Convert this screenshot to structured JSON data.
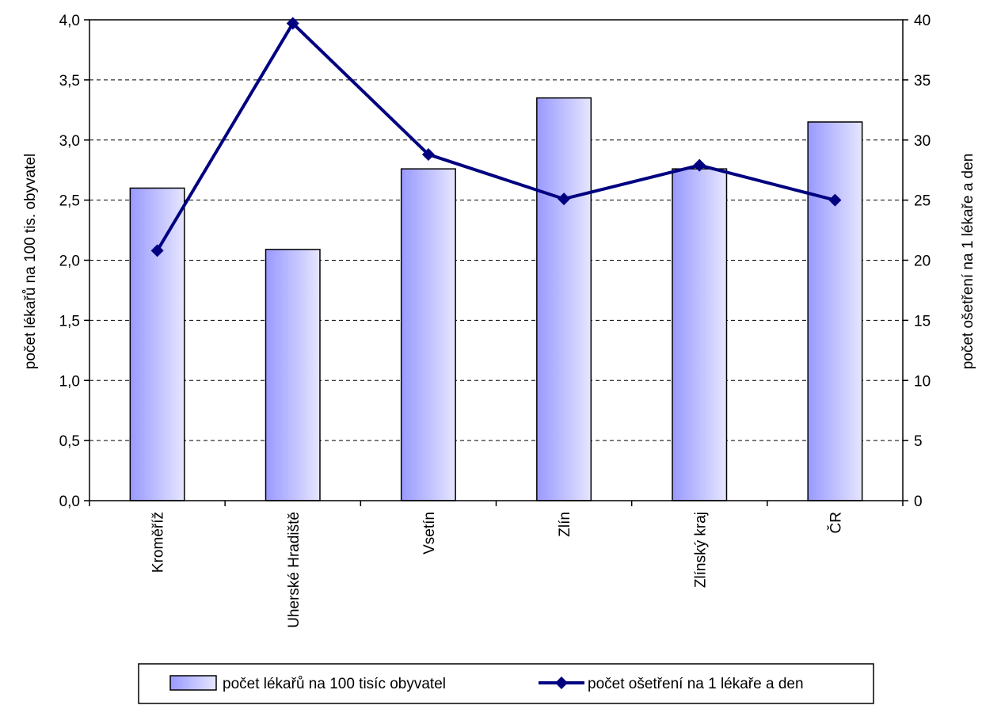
{
  "chart_data": {
    "type": "bar",
    "categories": [
      "Kroměříž",
      "Uherské Hradiště",
      "Vsetín",
      "Zlín",
      "Zlínský kraj",
      "ČR"
    ],
    "series": [
      {
        "name": "počet lékařů na 100 tisíc obyvatel",
        "type": "bar",
        "axis": "left",
        "values": [
          2.6,
          2.09,
          2.76,
          3.35,
          2.76,
          3.15
        ]
      },
      {
        "name": "počet ošetření na 1 lékaře a den",
        "type": "line",
        "axis": "right",
        "marker": "diamond",
        "values": [
          20.8,
          39.7,
          28.8,
          25.1,
          27.9,
          25.0
        ]
      }
    ],
    "ylabel_left": "počet lékařů na 100 tis. obyvatel",
    "ylabel_right": "počet ošetření na 1 lékaře a den",
    "ylim_left": [
      0,
      4
    ],
    "ylim_right": [
      0,
      40
    ],
    "yticks_left": [
      "0,0",
      "0,5",
      "1,0",
      "1,5",
      "2,0",
      "2,5",
      "3,0",
      "3,5",
      "4,0"
    ],
    "yticks_right": [
      "0",
      "5",
      "10",
      "15",
      "20",
      "25",
      "30",
      "35",
      "40"
    ],
    "grid": "horizontal-dashed",
    "legend_position": "bottom",
    "colors": {
      "bar_fill_start": "#9999ff",
      "bar_fill_end": "#e6e6ff",
      "bar_stroke": "#000000",
      "line": "#000080"
    }
  }
}
